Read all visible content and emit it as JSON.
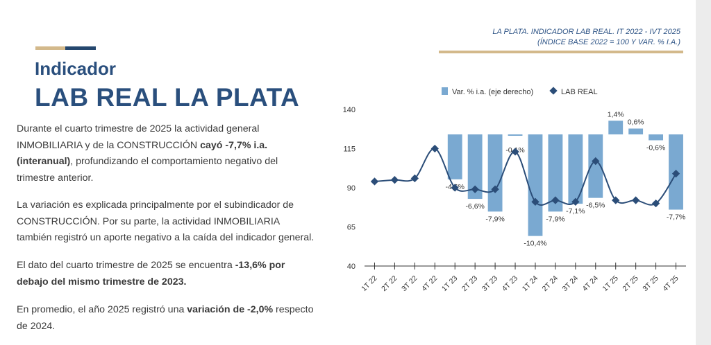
{
  "section": {
    "eyebrow": "Indicador",
    "headline": "LAB REAL LA PLATA"
  },
  "paragraphs": {
    "p1": [
      {
        "t": "Durante el cuarto trimestre de 2025 la actividad general INMOBILIARIA y de la CONSTRUCCIÓN ",
        "b": false
      },
      {
        "t": "cayó -7,7% i.a. (interanual)",
        "b": true
      },
      {
        "t": ", profundizando el comportamiento negativo del trimestre anterior.",
        "b": false
      }
    ],
    "p2": [
      {
        "t": "La variación es explicada principalmente por el subindicador de CONSTRUCCIÓN. Por su parte, la actividad INMOBILIARIA también registró un aporte negativo a la caída del indicador general.",
        "b": false
      }
    ],
    "p3": [
      {
        "t": "El dato del cuarto trimestre de 2025 se encuentra ",
        "b": false
      },
      {
        "t": "-13,6% por debajo del mismo trimestre de 2023.",
        "b": true
      }
    ],
    "p4": [
      {
        "t": "En promedio, el año 2025 registró una ",
        "b": false
      },
      {
        "t": "variación de -2,0%",
        "b": true
      },
      {
        "t": " respecto de 2024.",
        "b": false
      }
    ]
  },
  "chart_header": {
    "line1": "LA PLATA. INDICADOR LAB REAL. IT 2022 - IVT 2025",
    "line2": "(ÍNDICE BASE 2022 = 100 Y VAR. % I.A.)"
  },
  "colors": {
    "bar": "#7aa9d1",
    "line": "#2b4d78",
    "axis": "#333333",
    "text": "#333333",
    "rule": "#d3b98b"
  },
  "chart_data": {
    "type": "bar+line",
    "categories": [
      "1T 22",
      "2T 22",
      "3T 22",
      "4T 22",
      "1T 23",
      "2T 23",
      "3T 23",
      "4T 23",
      "1T 24",
      "2T 24",
      "3T 24",
      "4T 24",
      "1T 25",
      "2T 25",
      "3T 25",
      "4T 25"
    ],
    "legend": [
      "Var. % i.a. (eje derecho)",
      "LAB REAL"
    ],
    "left_axis": {
      "ticks": [
        40,
        65,
        90,
        115,
        140
      ],
      "ylim": [
        40,
        140
      ]
    },
    "series": [
      {
        "name": "Var. % i.a. (eje derecho)",
        "kind": "bar",
        "axis": "right",
        "values": [
          null,
          null,
          null,
          null,
          -4.6,
          -6.6,
          -7.9,
          -0.1,
          -10.4,
          -7.9,
          -7.1,
          -6.5,
          1.4,
          0.6,
          -0.6,
          -7.7
        ],
        "labels": [
          "",
          "",
          "",
          "",
          "-4,6%",
          "-6,6%",
          "-7,9%",
          "-0,1%",
          "-10,4%",
          "-7,9%",
          "-7,1%",
          "-6,5%",
          "1,4%",
          "0,6%",
          "-0,6%",
          "-7,7%"
        ]
      },
      {
        "name": "LAB REAL",
        "kind": "line",
        "axis": "left",
        "values": [
          94,
          95,
          96,
          115,
          90,
          89,
          89,
          113,
          81,
          82,
          81,
          107,
          82,
          82,
          80,
          99
        ]
      }
    ]
  }
}
